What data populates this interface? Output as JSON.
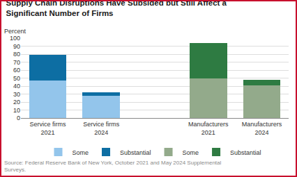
{
  "chart_data": {
    "type": "bar",
    "title": "Supply Chain Disruptions Have Subsided but Still Affect a Significant Number of Firms",
    "y_label": "Percent",
    "source": "Source: Federal Reserve Bank of New York, October 2021 and May 2024 Supplemental Surveys.",
    "categories": [
      "Service firms 2021",
      "Service firms 2024",
      null,
      "Manufacturers 2021",
      "Manufacturers 2024"
    ],
    "stacked": true,
    "series": [
      {
        "name": "Some",
        "color": "#93c5eb",
        "values": [
          47,
          28,
          null,
          null,
          null
        ]
      },
      {
        "name": "Substantial",
        "color": "#0d6ea3",
        "values": [
          32,
          4,
          null,
          null,
          null
        ]
      },
      {
        "name": "Some",
        "color": "#93aa8b",
        "values": [
          null,
          null,
          null,
          50,
          41
        ]
      },
      {
        "name": "Substantial",
        "color": "#2e7b42",
        "values": [
          null,
          null,
          null,
          44,
          7
        ]
      }
    ],
    "ylim": [
      0,
      100
    ],
    "yticks": [
      0,
      10,
      20,
      30,
      40,
      50,
      60,
      70,
      80,
      90,
      100
    ],
    "grid": true,
    "legend": "bottom"
  }
}
